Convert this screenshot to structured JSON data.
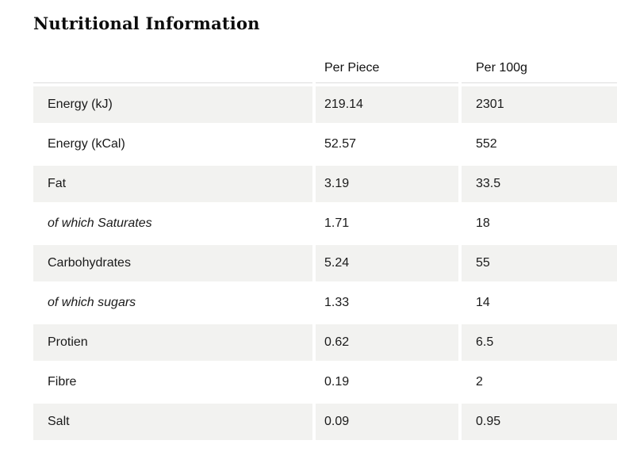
{
  "page": {
    "title": "Nutritional Information"
  },
  "table": {
    "columns": [
      "",
      "Per Piece",
      "Per 100g"
    ],
    "rows": [
      {
        "label": "Energy (kJ)",
        "per_piece": "219.14",
        "per_100g": "2301",
        "italic": false
      },
      {
        "label": "Energy (kCal)",
        "per_piece": "52.57",
        "per_100g": "552",
        "italic": false
      },
      {
        "label": "Fat",
        "per_piece": "3.19",
        "per_100g": "33.5",
        "italic": false
      },
      {
        "label": "of which Saturates",
        "per_piece": "1.71",
        "per_100g": "18",
        "italic": true
      },
      {
        "label": "Carbohydrates",
        "per_piece": "5.24",
        "per_100g": "55",
        "italic": false
      },
      {
        "label": "of which sugars",
        "per_piece": "1.33",
        "per_100g": "14",
        "italic": true
      },
      {
        "label": "Protien",
        "per_piece": "0.62",
        "per_100g": "6.5",
        "italic": false
      },
      {
        "label": "Fibre",
        "per_piece": "0.19",
        "per_100g": "2",
        "italic": false
      },
      {
        "label": "Salt",
        "per_piece": "0.09",
        "per_100g": "0.95",
        "italic": false
      }
    ],
    "colors": {
      "row_alt_background": "#f2f2f0",
      "row_background": "#ffffff",
      "text": "#1a1a1a",
      "header_rule": "#dddddd"
    }
  }
}
